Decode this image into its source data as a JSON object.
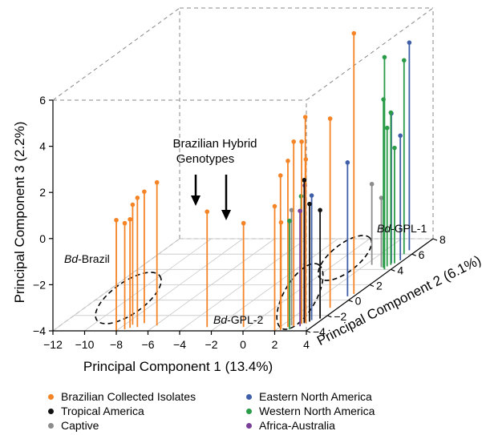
{
  "chart_data": {
    "type": "scatter",
    "subtype": "3d-stem",
    "title": "",
    "xlabel": "Principal Component 1 (13.4%)",
    "ylabel": "Principal Component 2  (6.1%)",
    "zlabel": "Principal Component 3  (2.2%)",
    "xlim": [
      -12,
      4
    ],
    "ylim": [
      -4,
      8
    ],
    "zlim": [
      -4,
      6
    ],
    "x_ticks": [
      "−12",
      "−10",
      "−8",
      "−6",
      "−4",
      "−2",
      "0",
      "2",
      "4"
    ],
    "y_ticks": [
      "−4",
      "−2",
      "0",
      "2",
      "4",
      "6",
      "8"
    ],
    "z_ticks": [
      "−4",
      "−2",
      "0",
      "2",
      "4",
      "6"
    ],
    "grid": true,
    "legend_position": "bottom",
    "series": [
      {
        "name": "Brazilian Collected Isolates",
        "color": "#f58426",
        "points": [
          {
            "x": -8.0,
            "y": -4.0,
            "z": 0.8
          },
          {
            "x": -7.6,
            "y": -3.8,
            "z": 0.6
          },
          {
            "x": -7.4,
            "y": -3.6,
            "z": 0.7
          },
          {
            "x": -7.0,
            "y": -3.5,
            "z": 1.6
          },
          {
            "x": -6.9,
            "y": -3.0,
            "z": 1.7
          },
          {
            "x": -7.5,
            "y": -3.2,
            "z": 1.2
          },
          {
            "x": -5.9,
            "y": -3.3,
            "z": 2.2
          },
          {
            "x": -2.6,
            "y": -3.5,
            "z": 1.0
          },
          {
            "x": -0.3,
            "y": -3.5,
            "z": 0.5
          },
          {
            "x": 2.2,
            "y": -3.7,
            "z": 0.6
          },
          {
            "x": 2.0,
            "y": -4.0,
            "z": 1.4
          },
          {
            "x": 2.3,
            "y": -3.9,
            "z": 2.7
          },
          {
            "x": 2.5,
            "y": -3.5,
            "z": 3.2
          },
          {
            "x": 2.8,
            "y": -3.4,
            "z": 4.0
          },
          {
            "x": 3.1,
            "y": -3.1,
            "z": 3.9
          },
          {
            "x": 3.3,
            "y": -3.0,
            "z": 3.1
          },
          {
            "x": 3.0,
            "y": -2.6,
            "z": 4.8
          },
          {
            "x": 2.8,
            "y": -2.4,
            "z": 2.0
          },
          {
            "x": 3.5,
            "y": -1.0,
            "z": 4.2
          },
          {
            "x": 3.8,
            "y": 0.8,
            "z": 7.3
          }
        ]
      },
      {
        "name": "Tropical America",
        "color": "#111111",
        "points": [
          {
            "x": 3.2,
            "y": -3.0,
            "z": 2.2
          },
          {
            "x": 3.4,
            "y": -2.8,
            "z": 1.1
          },
          {
            "x": 3.8,
            "y": -2.4,
            "z": 0.7
          }
        ]
      },
      {
        "name": "Captive",
        "color": "#8c8c8c",
        "points": [
          {
            "x": 2.6,
            "y": -3.3,
            "z": 1.0
          },
          {
            "x": 3.2,
            "y": 4.3,
            "z": -1.0
          },
          {
            "x": 2.4,
            "y": 4.6,
            "z": -0.5
          }
        ]
      },
      {
        "name": "Eastern North America",
        "color": "#3f5fa8",
        "points": [
          {
            "x": 3.4,
            "y": -2.6,
            "z": 1.4
          },
          {
            "x": 3.6,
            "y": 0.5,
            "z": 1.8
          },
          {
            "x": 3.5,
            "y": 4.8,
            "z": 2.5
          },
          {
            "x": 3.8,
            "y": 5.2,
            "z": 1.4
          },
          {
            "x": 3.5,
            "y": 6.5,
            "z": 5.0
          }
        ]
      },
      {
        "name": "Western North America",
        "color": "#2a9c48",
        "points": [
          {
            "x": 2.8,
            "y": -3.8,
            "z": 0.7
          },
          {
            "x": 3.0,
            "y": -3.0,
            "z": 1.5
          },
          {
            "x": 3.6,
            "y": 4.0,
            "z": 5.2
          },
          {
            "x": 3.4,
            "y": 4.2,
            "z": 3.3
          },
          {
            "x": 3.5,
            "y": 4.4,
            "z": 2.0
          },
          {
            "x": 3.6,
            "y": 4.6,
            "z": 2.6
          },
          {
            "x": 3.7,
            "y": 4.8,
            "z": 1.0
          },
          {
            "x": 3.5,
            "y": 6.0,
            "z": 4.4
          }
        ]
      },
      {
        "name": "Africa-Australia",
        "color": "#7a3f96",
        "points": [
          {
            "x": 3.1,
            "y": -2.8,
            "z": 1.9
          },
          {
            "x": 3.2,
            "y": -3.4,
            "z": 1.0
          }
        ]
      }
    ],
    "annotations": [
      {
        "text": "Brazilian Hybrid",
        "type": "label"
      },
      {
        "text": "Genotypes",
        "type": "label"
      }
    ],
    "clusters": [
      {
        "label_prefix": "Bd",
        "label_suffix": "-Brazil"
      },
      {
        "label_prefix": "Bd",
        "label_suffix": "-GPL-2"
      },
      {
        "label_prefix": "Bd",
        "label_suffix": "-GPL-1"
      }
    ]
  }
}
